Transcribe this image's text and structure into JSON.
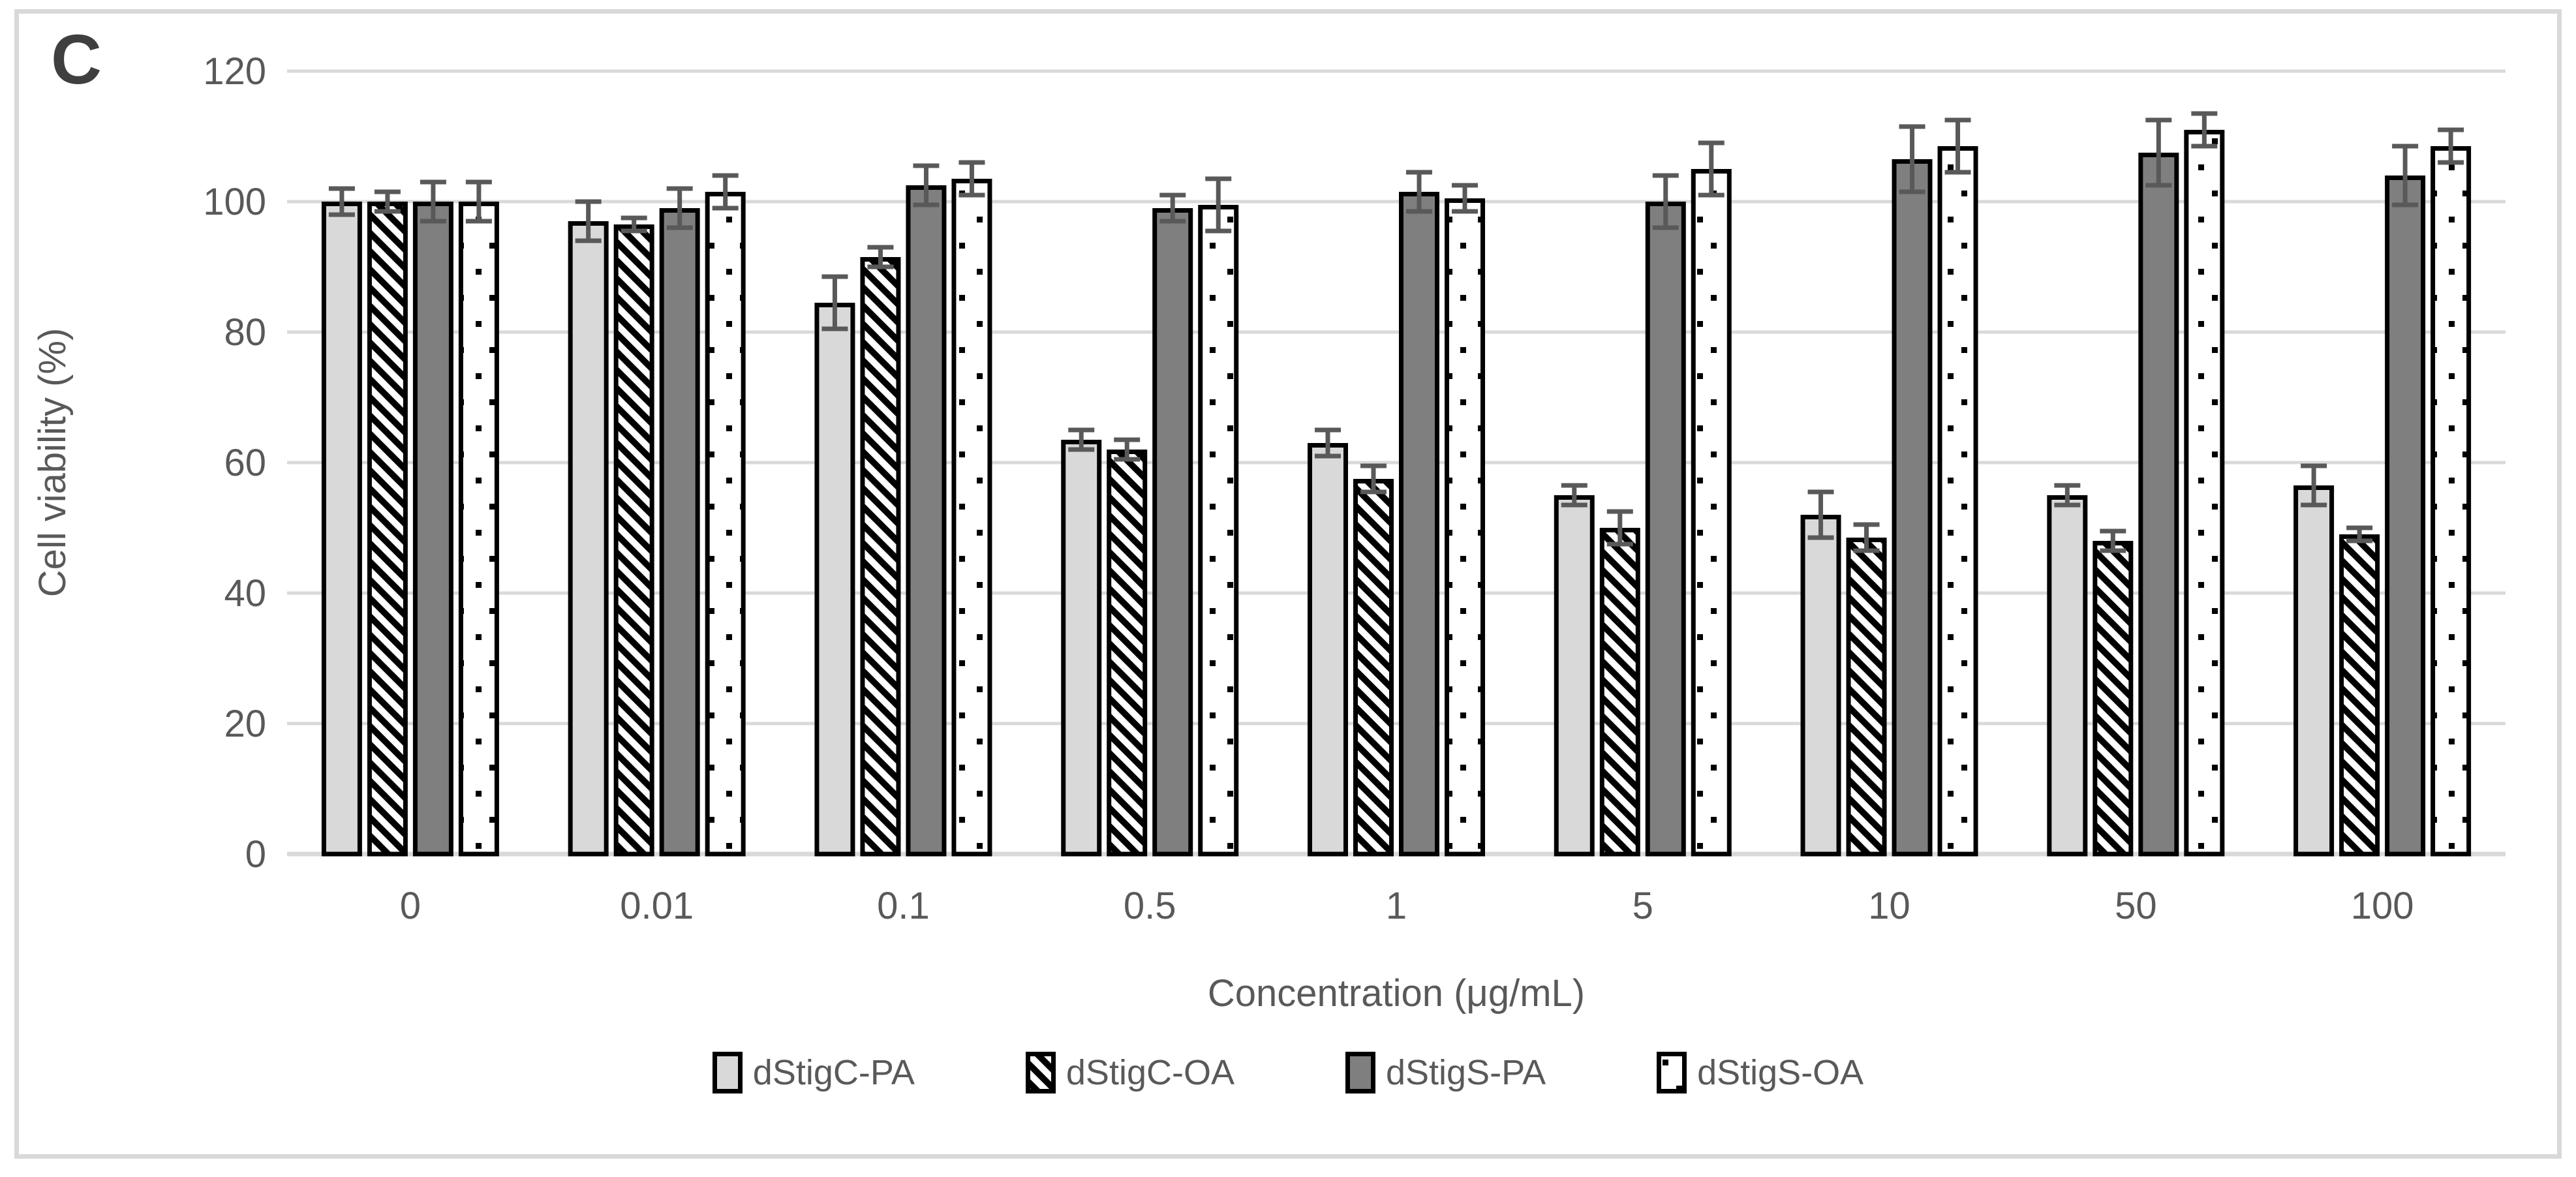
{
  "panel_label": "C",
  "chart_data": {
    "type": "bar",
    "title": "",
    "xlabel": "Concentration (μg/mL)",
    "ylabel": "Cell viability (%)",
    "ylim": [
      0,
      120
    ],
    "yticks": [
      0,
      20,
      40,
      60,
      80,
      100,
      120
    ],
    "grid": true,
    "legend_position": "bottom",
    "categories": [
      "0",
      "0.01",
      "0.1",
      "0.5",
      "1",
      "5",
      "10",
      "50",
      "100"
    ],
    "series": [
      {
        "name": "dStigC-PA",
        "pattern": "solid-light",
        "values": [
          100,
          97,
          84.5,
          63.5,
          63,
          55,
          52,
          55,
          56.5
        ],
        "errors": [
          2,
          3,
          4,
          1.5,
          2,
          1.5,
          3.5,
          1.5,
          3
        ]
      },
      {
        "name": "dStigC-OA",
        "pattern": "diagonal-hatch",
        "values": [
          100,
          96.5,
          91.5,
          62,
          57.5,
          50,
          48.5,
          48,
          49
        ],
        "errors": [
          1.5,
          1,
          1.5,
          1.5,
          2,
          2.5,
          2,
          1.5,
          1
        ]
      },
      {
        "name": "dStigS-PA",
        "pattern": "solid-dark",
        "values": [
          100,
          99,
          102.5,
          99,
          101.5,
          100,
          106.5,
          107.5,
          104
        ],
        "errors": [
          3,
          3,
          3,
          2,
          3,
          4,
          5,
          5,
          4.5
        ]
      },
      {
        "name": "dStigS-OA",
        "pattern": "dotted",
        "values": [
          100,
          101.5,
          103.5,
          99.5,
          100.5,
          105,
          108.5,
          111,
          108.5
        ],
        "errors": [
          3,
          2.5,
          2.5,
          4,
          2,
          4,
          4,
          2.5,
          2.5
        ]
      }
    ]
  },
  "colors": {
    "light_gray": "#d9d9d9",
    "dark_gray": "#7f7f7f",
    "bar_stroke": "#000000",
    "error_bar": "#595959",
    "gridline": "#d9d9d9",
    "axis_text": "#595959",
    "frame": "#d9d9d9",
    "panel_label": "#3f3f3f"
  }
}
